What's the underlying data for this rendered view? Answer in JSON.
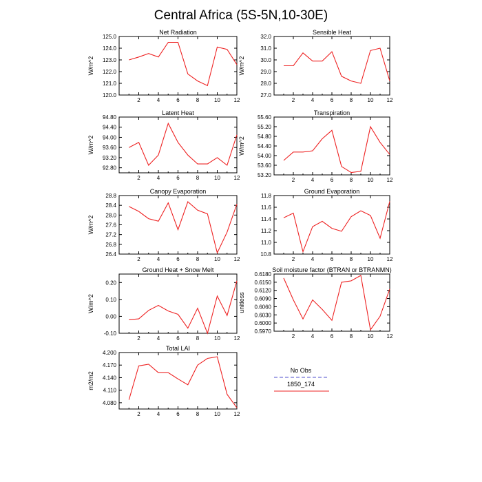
{
  "figure_title": "Central Africa (5S-5N,10-30E)",
  "legend": {
    "entries": [
      {
        "label": "No Obs",
        "color": "#8888dd",
        "dashed": true
      },
      {
        "label": "1850_174",
        "color": "#ee2222",
        "dashed": false
      }
    ]
  },
  "colors": {
    "series": "#ee2222",
    "axis": "#000000"
  },
  "chart_data": [
    {
      "type": "line",
      "title": "Net Radiation",
      "ylabel": "W/m^2",
      "x": [
        1,
        2,
        3,
        4,
        5,
        6,
        7,
        8,
        9,
        10,
        11,
        12
      ],
      "xlim": [
        0,
        12
      ],
      "xticks": [
        2,
        4,
        6,
        8,
        10,
        12
      ],
      "ylim": [
        120.0,
        125.0
      ],
      "yticks": [
        120.0,
        121.0,
        122.0,
        123.0,
        124.0,
        125.0
      ],
      "ytick_labels": [
        "120.0",
        "121.0",
        "122.0",
        "123.0",
        "124.0",
        "125.0"
      ],
      "series": [
        {
          "name": "1850_174",
          "values": [
            123.0,
            123.25,
            123.55,
            123.25,
            124.5,
            124.5,
            121.8,
            121.2,
            120.8,
            124.1,
            123.9,
            122.6
          ]
        }
      ]
    },
    {
      "type": "line",
      "title": "Sensible Heat",
      "ylabel": "W/m^2",
      "x": [
        1,
        2,
        3,
        4,
        5,
        6,
        7,
        8,
        9,
        10,
        11,
        12
      ],
      "xlim": [
        0,
        12
      ],
      "xticks": [
        2,
        4,
        6,
        8,
        10,
        12
      ],
      "ylim": [
        27.0,
        32.0
      ],
      "yticks": [
        27.0,
        28.0,
        29.0,
        30.0,
        31.0,
        32.0
      ],
      "ytick_labels": [
        "27.0",
        "28.0",
        "29.0",
        "30.0",
        "31.0",
        "32.0"
      ],
      "series": [
        {
          "name": "1850_174",
          "values": [
            29.5,
            29.5,
            30.6,
            29.9,
            29.9,
            30.7,
            28.6,
            28.2,
            28.0,
            30.8,
            31.0,
            28.2
          ]
        }
      ]
    },
    {
      "type": "line",
      "title": "Latent Heat",
      "ylabel": "W/m^2",
      "x": [
        1,
        2,
        3,
        4,
        5,
        6,
        7,
        8,
        9,
        10,
        11,
        12
      ],
      "xlim": [
        0,
        12
      ],
      "xticks": [
        2,
        4,
        6,
        8,
        10,
        12
      ],
      "ylim": [
        92.6,
        94.8
      ],
      "yticks": [
        92.8,
        93.2,
        93.6,
        94.0,
        94.4,
        94.8
      ],
      "ytick_labels": [
        "92.80",
        "93.20",
        "93.60",
        "94.00",
        "94.40",
        "94.80"
      ],
      "series": [
        {
          "name": "1850_174",
          "values": [
            93.6,
            93.8,
            92.9,
            93.3,
            94.55,
            93.8,
            93.3,
            92.95,
            92.95,
            93.2,
            92.9,
            94.1
          ]
        }
      ]
    },
    {
      "type": "line",
      "title": "Transpiration",
      "ylabel": "W/m^2",
      "x": [
        1,
        2,
        3,
        4,
        5,
        6,
        7,
        8,
        9,
        10,
        11,
        12
      ],
      "xlim": [
        0,
        12
      ],
      "xticks": [
        2,
        4,
        6,
        8,
        10,
        12
      ],
      "ylim": [
        53.2,
        55.6
      ],
      "yticks": [
        53.2,
        53.6,
        54.0,
        54.4,
        54.8,
        55.2,
        55.6
      ],
      "ytick_labels": [
        "53.20",
        "53.60",
        "54.00",
        "54.40",
        "54.80",
        "55.20",
        "55.60"
      ],
      "series": [
        {
          "name": "1850_174",
          "values": [
            53.8,
            54.15,
            54.15,
            54.2,
            54.7,
            55.05,
            53.55,
            53.3,
            53.35,
            55.2,
            54.55,
            54.05
          ]
        }
      ]
    },
    {
      "type": "line",
      "title": "Canopy Evaporation",
      "ylabel": "W/m^2",
      "x": [
        1,
        2,
        3,
        4,
        5,
        6,
        7,
        8,
        9,
        10,
        11,
        12
      ],
      "xlim": [
        0,
        12
      ],
      "xticks": [
        2,
        4,
        6,
        8,
        10,
        12
      ],
      "ylim": [
        26.4,
        28.8
      ],
      "yticks": [
        26.4,
        26.8,
        27.2,
        27.6,
        28.0,
        28.4,
        28.8
      ],
      "ytick_labels": [
        "26.4",
        "26.8",
        "27.2",
        "27.6",
        "28.0",
        "28.4",
        "28.8"
      ],
      "series": [
        {
          "name": "1850_174",
          "values": [
            28.35,
            28.15,
            27.85,
            27.75,
            28.5,
            27.4,
            28.55,
            28.2,
            28.05,
            26.45,
            27.3,
            28.45
          ]
        }
      ]
    },
    {
      "type": "line",
      "title": "Ground Evaporation",
      "ylabel": "",
      "x": [
        1,
        2,
        3,
        4,
        5,
        6,
        7,
        8,
        9,
        10,
        11,
        12
      ],
      "xlim": [
        0,
        12
      ],
      "xticks": [
        2,
        4,
        6,
        8,
        10,
        12
      ],
      "ylim": [
        10.8,
        11.8
      ],
      "yticks": [
        10.8,
        11.0,
        11.2,
        11.4,
        11.6,
        11.8
      ],
      "ytick_labels": [
        "10.8",
        "11.0",
        "11.2",
        "11.4",
        "11.6",
        "11.8"
      ],
      "series": [
        {
          "name": "1850_174",
          "values": [
            11.42,
            11.5,
            10.84,
            11.27,
            11.36,
            11.24,
            11.19,
            11.44,
            11.54,
            11.46,
            11.07,
            11.7
          ]
        }
      ]
    },
    {
      "type": "line",
      "title": "Ground Heat + Snow Melt",
      "ylabel": "W/m^2",
      "x": [
        1,
        2,
        3,
        4,
        5,
        6,
        7,
        8,
        9,
        10,
        11,
        12
      ],
      "xlim": [
        0,
        12
      ],
      "xticks": [
        2,
        4,
        6,
        8,
        10,
        12
      ],
      "ylim": [
        -0.1,
        0.25
      ],
      "yticks": [
        -0.1,
        0.0,
        0.1,
        0.2
      ],
      "ytick_labels": [
        "-0.10",
        "0.00",
        "0.10",
        "0.20"
      ],
      "series": [
        {
          "name": "1850_174",
          "values": [
            -0.02,
            -0.015,
            0.035,
            0.065,
            0.032,
            0.012,
            -0.07,
            0.048,
            -0.1,
            0.12,
            0.005,
            0.21
          ]
        }
      ]
    },
    {
      "type": "line",
      "title": "Soil moisture factor (BTRAN or BTRANMN)",
      "ylabel": "unitless",
      "x": [
        1,
        2,
        3,
        4,
        5,
        6,
        7,
        8,
        9,
        10,
        11,
        12
      ],
      "xlim": [
        0,
        12
      ],
      "xticks": [
        2,
        4,
        6,
        8,
        10,
        12
      ],
      "ylim": [
        0.597,
        0.618
      ],
      "yticks": [
        0.597,
        0.6,
        0.603,
        0.606,
        0.609,
        0.612,
        0.615,
        0.618
      ],
      "ytick_labels": [
        "0.5970",
        "0.6000",
        "0.6030",
        "0.6060",
        "0.6090",
        "0.6120",
        "0.6150",
        "0.6180"
      ],
      "series": [
        {
          "name": "1850_174",
          "values": [
            0.6165,
            0.6085,
            0.6015,
            0.6085,
            0.605,
            0.601,
            0.615,
            0.6155,
            0.6175,
            0.5975,
            0.6025,
            0.6125
          ]
        }
      ]
    },
    {
      "type": "line",
      "title": "Total LAI",
      "ylabel": "m2/m2",
      "x": [
        1,
        2,
        3,
        4,
        5,
        6,
        7,
        8,
        9,
        10,
        11,
        12
      ],
      "xlim": [
        0,
        12
      ],
      "xticks": [
        2,
        4,
        6,
        8,
        10,
        12
      ],
      "ylim": [
        4.065,
        4.2
      ],
      "yticks": [
        4.08,
        4.11,
        4.14,
        4.17,
        4.2
      ],
      "ytick_labels": [
        "4.080",
        "4.110",
        "4.140",
        "4.170",
        "4.200"
      ],
      "series": [
        {
          "name": "1850_174",
          "values": [
            4.087,
            4.168,
            4.172,
            4.152,
            4.152,
            4.137,
            4.123,
            4.17,
            4.186,
            4.19,
            4.1,
            4.068
          ]
        }
      ]
    }
  ]
}
